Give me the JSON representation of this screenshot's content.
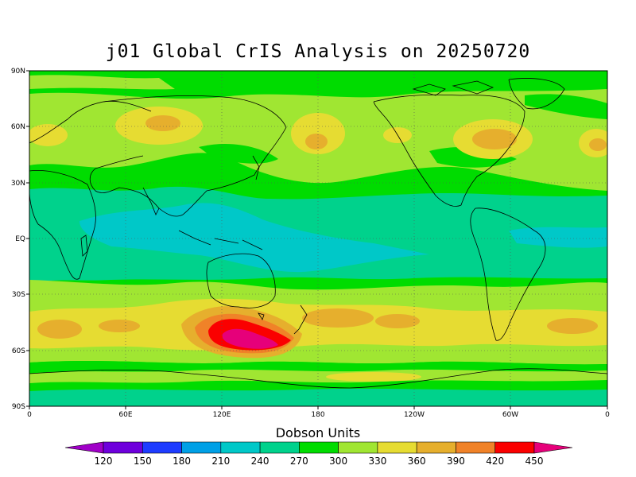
{
  "title": "j01 Global CrIS Analysis on 20250720",
  "map": {
    "y_axis_labels": [
      "90N",
      "60N",
      "30N",
      "EQ",
      "30S",
      "60S",
      "90S"
    ],
    "x_axis_labels": [
      "0",
      "60E",
      "120E",
      "180",
      "120W",
      "60W",
      "0"
    ]
  },
  "legend": {
    "title": "Dobson Units",
    "levels": [
      "120",
      "150",
      "180",
      "210",
      "240",
      "270",
      "300",
      "330",
      "360",
      "390",
      "420",
      "450"
    ],
    "colors": [
      "#a000c8",
      "#6e00dc",
      "#1e3cff",
      "#00a0e6",
      "#00c8c8",
      "#00d28c",
      "#00dc00",
      "#a0e632",
      "#e6dc32",
      "#e6af2d",
      "#f08228",
      "#fa0000",
      "#e6007a"
    ]
  },
  "colors": {
    "low_tropics": "#00c8c8",
    "mid": "#00d28c",
    "green": "#00dc00",
    "light_green": "#a0e632",
    "yellow": "#e6dc32",
    "orange": "#e6af2d",
    "dark_orange": "#f08228",
    "red": "#fa0000",
    "magenta": "#e6007a"
  }
}
